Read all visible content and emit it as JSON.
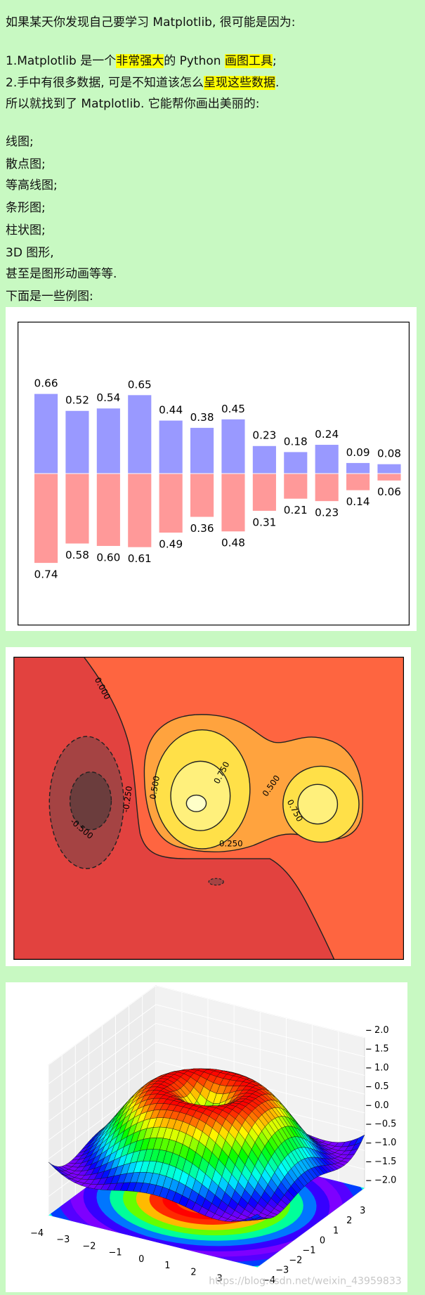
{
  "document": {
    "lines": [
      [
        {
          "text": "如果某天你发现自己要学习 Matplotlib, 很可能是因为:"
        }
      ],
      [
        {
          "text": "1.Matplotlib 是一个"
        },
        {
          "text": "非常强大",
          "highlight": true
        },
        {
          "text": "的 Python "
        },
        {
          "text": "画图工具",
          "highlight": true
        },
        {
          "text": ";"
        }
      ],
      [
        {
          "text": "2.手中有很多数据, 可是不知道该怎么"
        },
        {
          "text": "呈现这些数据",
          "highlight": true
        },
        {
          "text": "."
        }
      ],
      [
        {
          "text": "所以就找到了 Matplotlib. 它能帮你画出美丽的:"
        }
      ],
      [
        {
          "text": "线图;"
        }
      ],
      [
        {
          "text": "散点图;"
        }
      ],
      [
        {
          "text": "等高线图;"
        }
      ],
      [
        {
          "text": "条形图;"
        }
      ],
      [
        {
          "text": "柱状图;"
        }
      ],
      [
        {
          "text": "3D 图形,"
        }
      ],
      [
        {
          "text": "甚至是图形动画等等."
        }
      ],
      [
        {
          "text": "下面是一些例图:"
        }
      ]
    ]
  },
  "chart_data": [
    {
      "type": "bar",
      "ylim": [
        -1.25,
        1.25
      ],
      "series": [
        {
          "color": "#9999ff",
          "values": [
            0.66,
            0.52,
            0.54,
            0.65,
            0.44,
            0.38,
            0.45,
            0.23,
            0.18,
            0.24,
            0.09,
            0.08
          ],
          "value_labels": [
            "0.66",
            "0.52",
            "0.54",
            "0.65",
            "0.44",
            "0.38",
            "0.45",
            "0.23",
            "0.18",
            "0.24",
            "0.09",
            "0.08"
          ]
        },
        {
          "color": "#ff9999",
          "values": [
            0.74,
            0.58,
            0.6,
            0.61,
            0.49,
            0.36,
            0.48,
            0.31,
            0.21,
            0.23,
            0.14,
            0.06
          ],
          "value_labels": [
            "0.74",
            "0.58",
            "0.60",
            "0.61",
            "0.49",
            "0.36",
            "0.48",
            "0.31",
            "0.21",
            "0.23",
            "0.14",
            "0.06"
          ]
        }
      ]
    },
    {
      "type": "contour",
      "contour_labels": [
        "0.000",
        "0.500",
        "0.750",
        "0.500",
        "0.750",
        "0.250",
        "-0.500",
        "-0.250"
      ]
    },
    {
      "type": "surface3d",
      "xlim": [
        -4,
        4
      ],
      "ylim": [
        -4,
        4
      ],
      "zlim": [
        -2,
        2
      ],
      "xticks": [
        {
          "value": -4,
          "label": "−4"
        },
        {
          "value": -3,
          "label": "−3"
        },
        {
          "value": -2,
          "label": "−2"
        },
        {
          "value": -1,
          "label": "−1"
        },
        0,
        1,
        2,
        3
      ],
      "yticks": [
        {
          "value": -4,
          "label": "−4"
        },
        {
          "value": -3,
          "label": "−3"
        },
        {
          "value": -2,
          "label": "−2"
        },
        {
          "value": -1,
          "label": "−1"
        },
        0,
        1,
        2,
        3
      ],
      "zticks": [
        {
          "value": 2,
          "label": "2.0"
        },
        {
          "value": 1.5,
          "label": "1.5"
        },
        {
          "value": 1,
          "label": "1.0"
        },
        {
          "value": 0.5,
          "label": "0.5"
        },
        {
          "value": 0,
          "label": "0.0"
        },
        {
          "value": -0.5,
          "label": "−0.5"
        },
        {
          "value": -1,
          "label": "−1.0"
        },
        {
          "value": -1.5,
          "label": "−1.5"
        },
        {
          "value": -2,
          "label": "−2.0"
        }
      ]
    }
  ],
  "watermark": "https://blog.csdn.net/weixin_43959833"
}
